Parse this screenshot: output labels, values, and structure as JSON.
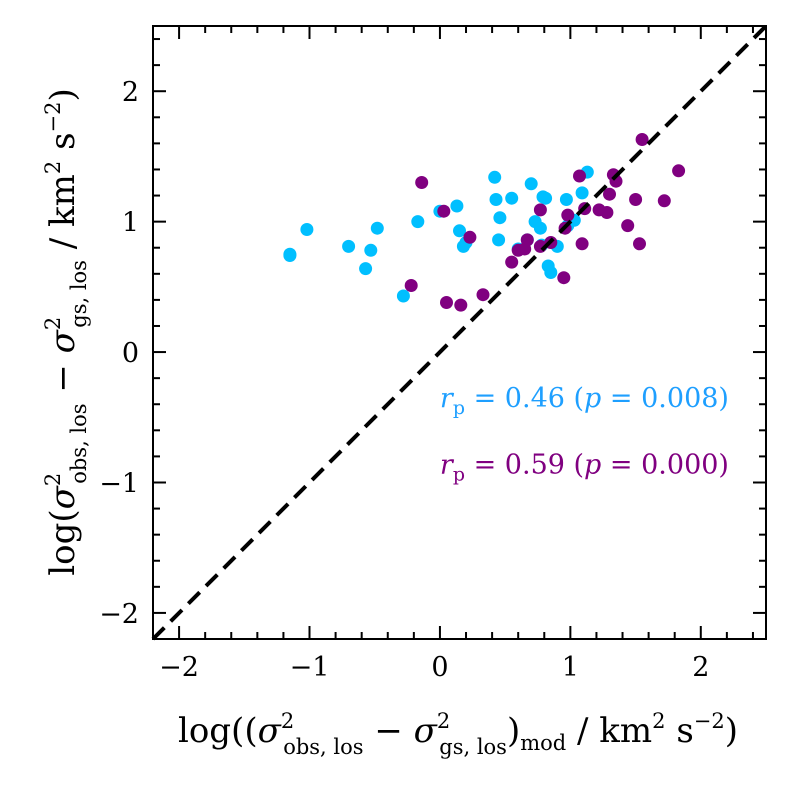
{
  "chart_data": {
    "type": "scatter",
    "xlabel": "log((σ²_obs,los − σ²_gs,los)_mod / km² s⁻²)",
    "ylabel": "log(σ²_obs,los − σ²_gs,los / km² s⁻²)",
    "xlim": [
      -2.2,
      2.5
    ],
    "ylim": [
      -2.2,
      2.5
    ],
    "x_ticks": [
      -2,
      -1,
      0,
      1,
      2
    ],
    "y_ticks": [
      -2,
      -1,
      0,
      1,
      2
    ],
    "x_tick_labels": [
      "−2",
      "−1",
      "0",
      "1",
      "2"
    ],
    "y_tick_labels": [
      "−2",
      "−1",
      "0",
      "1",
      "2"
    ],
    "reference_line": {
      "style": "dashed",
      "color": "#000000",
      "slope": 1,
      "intercept": 0
    },
    "series": [
      {
        "color": "#00bfff",
        "points": [
          [
            -1.15,
            0.75
          ],
          [
            -1.15,
            0.74
          ],
          [
            -1.02,
            0.94
          ],
          [
            -0.7,
            0.81
          ],
          [
            -0.57,
            0.64
          ],
          [
            -0.53,
            0.78
          ],
          [
            -0.48,
            0.95
          ],
          [
            -0.28,
            0.43
          ],
          [
            -0.17,
            1.0
          ],
          [
            0.0,
            1.08
          ],
          [
            0.13,
            1.12
          ],
          [
            0.15,
            0.93
          ],
          [
            0.18,
            0.81
          ],
          [
            0.2,
            0.84
          ],
          [
            0.42,
            1.34
          ],
          [
            0.43,
            1.17
          ],
          [
            0.45,
            0.86
          ],
          [
            0.46,
            1.03
          ],
          [
            0.55,
            1.18
          ],
          [
            0.6,
            0.79
          ],
          [
            0.67,
            0.86
          ],
          [
            0.7,
            1.29
          ],
          [
            0.73,
            1.0
          ],
          [
            0.77,
            0.95
          ],
          [
            0.78,
            0.82
          ],
          [
            0.79,
            1.19
          ],
          [
            0.81,
            1.18
          ],
          [
            0.83,
            0.66
          ],
          [
            0.85,
            0.61
          ],
          [
            0.9,
            0.81
          ],
          [
            0.97,
            1.17
          ],
          [
            1.03,
            1.01
          ],
          [
            1.09,
            1.22
          ],
          [
            1.13,
            1.38
          ],
          [
            0.98,
            0.97
          ]
        ]
      },
      {
        "color": "#800080",
        "points": [
          [
            -0.22,
            0.51
          ],
          [
            -0.14,
            1.3
          ],
          [
            0.03,
            1.08
          ],
          [
            0.05,
            0.38
          ],
          [
            0.16,
            0.36
          ],
          [
            0.23,
            0.88
          ],
          [
            0.33,
            0.44
          ],
          [
            0.55,
            0.69
          ],
          [
            0.6,
            0.78
          ],
          [
            0.65,
            0.79
          ],
          [
            0.67,
            0.86
          ],
          [
            0.77,
            0.81
          ],
          [
            0.77,
            1.09
          ],
          [
            0.85,
            0.84
          ],
          [
            0.95,
            0.57
          ],
          [
            0.96,
            0.95
          ],
          [
            0.98,
            1.05
          ],
          [
            1.07,
            1.35
          ],
          [
            1.09,
            0.83
          ],
          [
            1.11,
            1.1
          ],
          [
            1.22,
            1.09
          ],
          [
            1.28,
            1.07
          ],
          [
            1.3,
            1.21
          ],
          [
            1.33,
            1.36
          ],
          [
            1.35,
            1.31
          ],
          [
            1.44,
            0.97
          ],
          [
            1.5,
            1.17
          ],
          [
            1.53,
            0.83
          ],
          [
            1.55,
            1.63
          ],
          [
            1.72,
            1.16
          ],
          [
            1.83,
            1.39
          ]
        ]
      }
    ],
    "annotations": [
      {
        "text": "r_p = 0.46 (p = 0.008)",
        "label": "r",
        "subscript": "p",
        "value": " = 0.46 (",
        "pvar": "p",
        "pvalue": " = 0.008)",
        "color": "#1e9fff",
        "x": 0.0,
        "y": -0.42
      },
      {
        "text": "r_p = 0.59 (p = 0.000)",
        "label": "r",
        "subscript": "p",
        "value": " = 0.59 (",
        "pvar": "p",
        "pvalue": " = 0.000)",
        "color": "#800080",
        "x": 0.0,
        "y": -0.93
      }
    ],
    "grid": false,
    "legend": "none"
  }
}
